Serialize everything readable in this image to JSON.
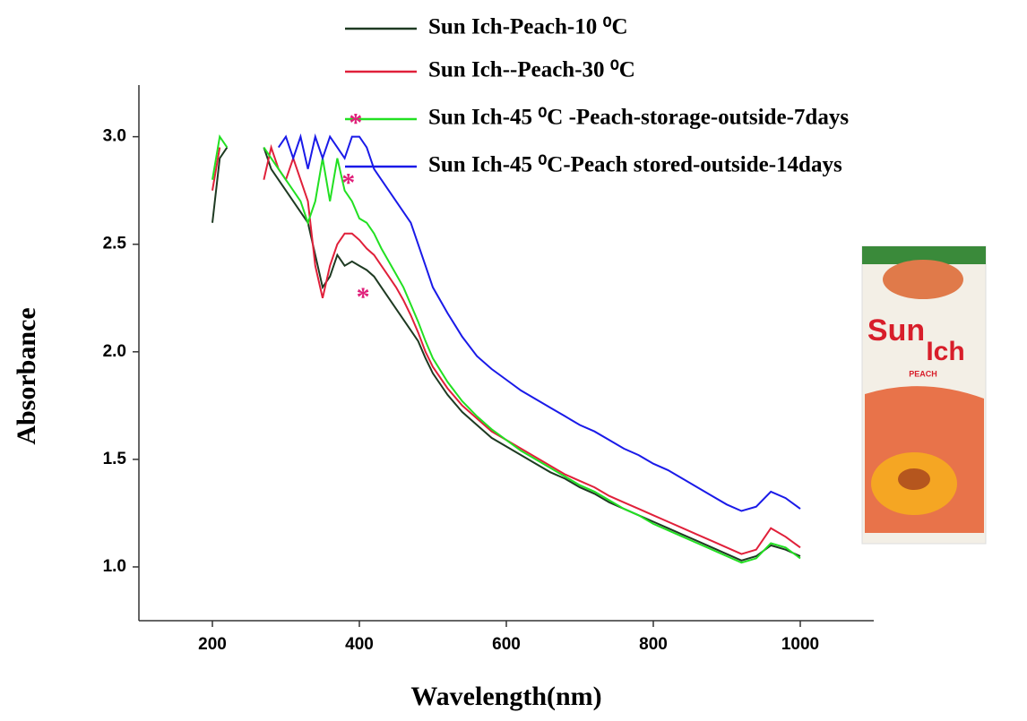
{
  "chart_data": {
    "type": "line",
    "x_label": "Wavelength(nm)",
    "y_label": "Absorbance",
    "xlim": [
      100,
      1100
    ],
    "ylim": [
      0.75,
      3.24
    ],
    "xticks": [
      200,
      400,
      600,
      800,
      1000
    ],
    "yticks": [
      {
        "value": 1,
        "label": "1.0"
      },
      {
        "value": 1.5,
        "label": "1.5"
      },
      {
        "value": 2,
        "label": "2.0"
      },
      2.5,
      {
        "value": 3,
        "label": "3.0"
      }
    ],
    "grid": false,
    "x": [
      200,
      210,
      220,
      230,
      240,
      250,
      260,
      270,
      280,
      290,
      300,
      310,
      320,
      330,
      340,
      350,
      360,
      370,
      380,
      390,
      400,
      410,
      420,
      430,
      440,
      450,
      460,
      470,
      480,
      490,
      500,
      520,
      540,
      560,
      580,
      600,
      620,
      640,
      660,
      680,
      700,
      720,
      740,
      760,
      780,
      800,
      820,
      840,
      860,
      880,
      900,
      920,
      940,
      960,
      980,
      1000
    ],
    "series": [
      {
        "name": "Sun Ich-Peach-10 ⁰C",
        "color": "#1e3a22",
        "values": [
          2.6,
          2.9,
          2.95,
          null,
          null,
          null,
          null,
          2.95,
          2.85,
          2.8,
          2.75,
          2.7,
          2.65,
          2.6,
          2.45,
          2.3,
          2.35,
          2.45,
          2.4,
          2.42,
          2.4,
          2.38,
          2.35,
          2.3,
          2.25,
          2.2,
          2.15,
          2.1,
          2.05,
          1.97,
          1.9,
          1.8,
          1.72,
          1.66,
          1.6,
          1.56,
          1.52,
          1.48,
          1.44,
          1.41,
          1.37,
          1.34,
          1.3,
          1.27,
          1.24,
          1.21,
          1.18,
          1.15,
          1.12,
          1.09,
          1.06,
          1.03,
          1.05,
          1.1,
          1.08,
          1.05
        ]
      },
      {
        "name": "Sun Ich--Peach-30 ⁰C",
        "color": "#e0203a",
        "values": [
          2.75,
          2.95,
          null,
          null,
          null,
          null,
          null,
          2.8,
          2.95,
          2.85,
          2.8,
          2.9,
          2.8,
          2.7,
          2.4,
          2.25,
          2.4,
          2.5,
          2.55,
          2.55,
          2.52,
          2.48,
          2.45,
          2.4,
          2.35,
          2.3,
          2.24,
          2.17,
          2.09,
          2.0,
          1.93,
          1.83,
          1.75,
          1.69,
          1.63,
          1.59,
          1.55,
          1.51,
          1.47,
          1.43,
          1.4,
          1.37,
          1.33,
          1.3,
          1.27,
          1.24,
          1.21,
          1.18,
          1.15,
          1.12,
          1.09,
          1.06,
          1.08,
          1.18,
          1.14,
          1.09
        ]
      },
      {
        "name": "Sun Ich-45 ⁰C -Peach-storage-outside-7days",
        "color": "#22e022",
        "values": [
          2.8,
          3.0,
          2.95,
          null,
          null,
          null,
          null,
          2.95,
          2.9,
          2.85,
          2.8,
          2.75,
          2.7,
          2.6,
          2.7,
          2.9,
          2.7,
          2.9,
          2.75,
          2.7,
          2.62,
          2.6,
          2.55,
          2.48,
          2.42,
          2.36,
          2.3,
          2.22,
          2.14,
          2.05,
          1.97,
          1.86,
          1.77,
          1.7,
          1.64,
          1.59,
          1.54,
          1.5,
          1.46,
          1.42,
          1.38,
          1.35,
          1.31,
          1.27,
          1.24,
          1.2,
          1.17,
          1.14,
          1.11,
          1.08,
          1.05,
          1.02,
          1.04,
          1.11,
          1.09,
          1.04
        ]
      },
      {
        "name": "Sun Ich-45 ⁰C-Peach stored-outside-14days",
        "color": "#1a1ae8",
        "values": [
          null,
          null,
          null,
          null,
          null,
          null,
          null,
          null,
          null,
          2.95,
          3.0,
          2.9,
          3.0,
          2.85,
          3.0,
          2.9,
          3.0,
          2.95,
          2.9,
          3.0,
          3.0,
          2.95,
          2.85,
          2.8,
          2.75,
          2.7,
          2.65,
          2.6,
          2.5,
          2.4,
          2.3,
          2.18,
          2.07,
          1.98,
          1.92,
          1.87,
          1.82,
          1.78,
          1.74,
          1.7,
          1.66,
          1.63,
          1.59,
          1.55,
          1.52,
          1.48,
          1.45,
          1.41,
          1.37,
          1.33,
          1.29,
          1.26,
          1.28,
          1.35,
          1.32,
          1.27
        ]
      }
    ],
    "annotations": [
      {
        "text": "*",
        "x": 395,
        "y": 3.08,
        "color": "#e0207a"
      },
      {
        "text": "*",
        "x": 385,
        "y": 2.8,
        "color": "#e0207a"
      },
      {
        "text": "*",
        "x": 405,
        "y": 2.27,
        "color": "#e0207a"
      }
    ],
    "inset_image_texts": [
      "Sun",
      "Ich",
      "PEACH"
    ]
  }
}
